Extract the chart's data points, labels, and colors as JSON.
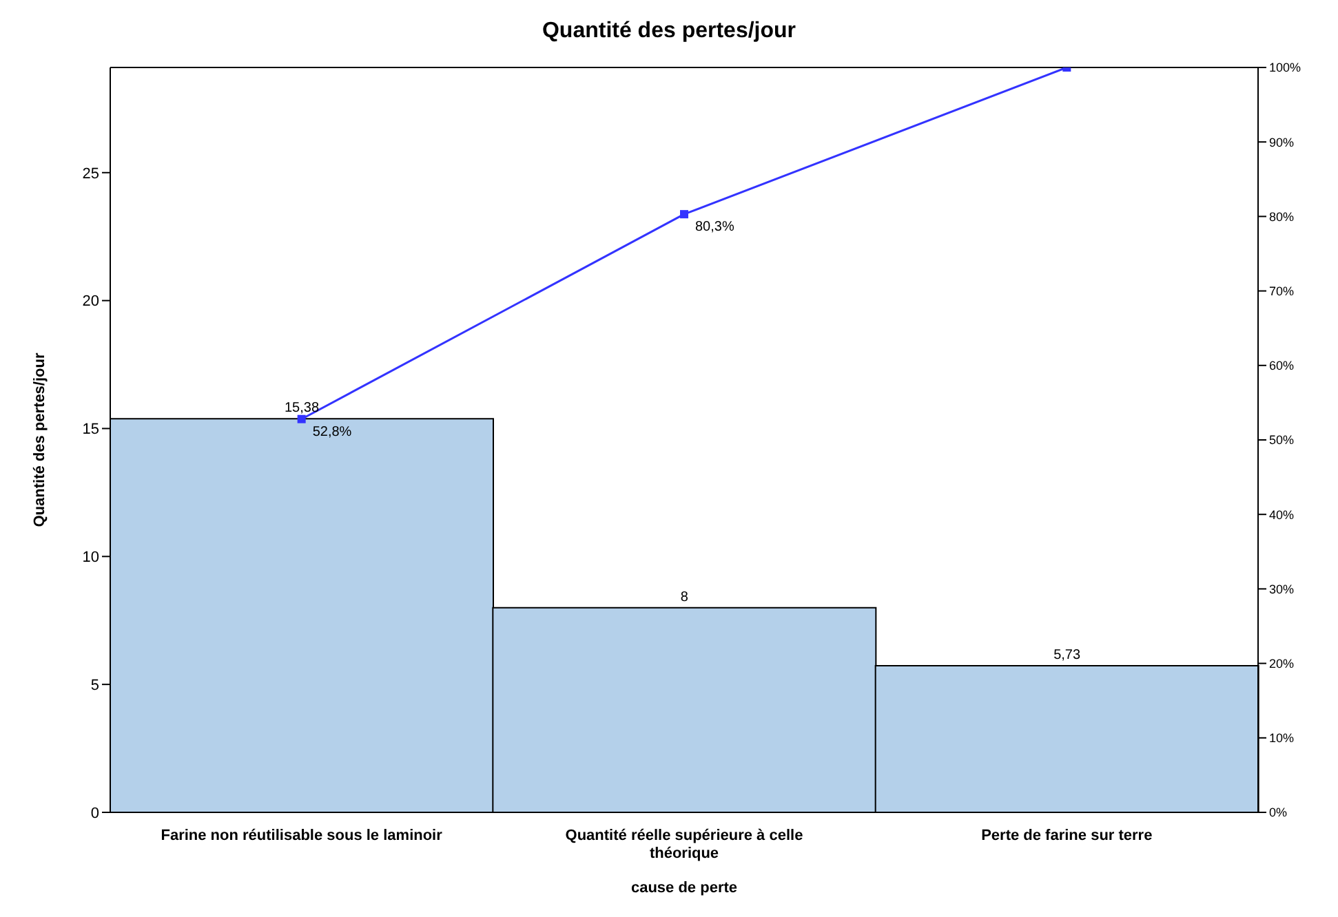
{
  "chart_data": {
    "type": "bar",
    "title": "Quantité des pertes/jour",
    "xlabel": "cause de perte",
    "ylabel": "Quantité des pertes/jour",
    "categories": [
      "Farine non réutilisable sous le laminoir",
      "Quantité réelle supérieure à celle théorique",
      "Perte de farine sur terre"
    ],
    "ylim": [
      0,
      29.11
    ],
    "yticks": [
      0,
      5,
      10,
      15,
      20,
      25
    ],
    "y2lim": [
      0,
      100
    ],
    "y2ticks": [
      {
        "value": 0,
        "label": "0%"
      },
      {
        "value": 10,
        "label": "10%"
      },
      {
        "value": 20,
        "label": "20%"
      },
      {
        "value": 30,
        "label": "30%"
      },
      {
        "value": 40,
        "label": "40%"
      },
      {
        "value": 50,
        "label": "50%"
      },
      {
        "value": 60,
        "label": "60%"
      },
      {
        "value": 70,
        "label": "70%"
      },
      {
        "value": 80,
        "label": "80%"
      },
      {
        "value": 90,
        "label": "90%"
      },
      {
        "value": 100,
        "label": "100%"
      }
    ],
    "grid": false,
    "marker": "square",
    "series": [
      {
        "color": "#b4d0ea",
        "values": [
          15.38,
          8,
          5.73
        ],
        "value_labels": [
          "15,38",
          "8",
          "5,73"
        ]
      },
      {
        "type": "line",
        "axis": "y2",
        "color": "#3333ff",
        "values": [
          52.8,
          80.3,
          100
        ],
        "value_labels": [
          "52,8%",
          "80,3%",
          null
        ]
      }
    ]
  }
}
